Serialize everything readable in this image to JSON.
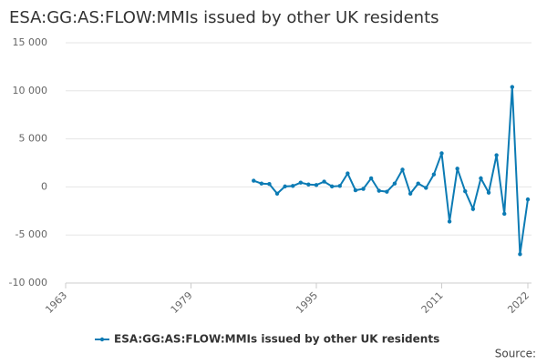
{
  "chart_data": {
    "type": "line",
    "title": "ESA:GG:AS:FLOW:MMIs issued by other UK residents",
    "source": "Source:",
    "x": [
      1987,
      1988,
      1989,
      1990,
      1991,
      1992,
      1993,
      1994,
      1995,
      1996,
      1997,
      1998,
      1999,
      2000,
      2001,
      2002,
      2003,
      2004,
      2005,
      2006,
      2007,
      2008,
      2009,
      2010,
      2011,
      2012,
      2013,
      2014,
      2015,
      2016,
      2017,
      2018,
      2019,
      2020,
      2021,
      2022
    ],
    "series": [
      {
        "name": "ESA:GG:AS:FLOW:MMIs issued by other UK residents",
        "color": "#0c7bb4",
        "values": [
          650,
          350,
          300,
          -700,
          50,
          100,
          450,
          250,
          200,
          550,
          50,
          100,
          1400,
          -350,
          -200,
          900,
          -400,
          -500,
          350,
          1800,
          -700,
          350,
          -100,
          1300,
          3500,
          -3600,
          1900,
          -450,
          -2300,
          900,
          -600,
          3300,
          -2800,
          10400,
          -7000,
          -1300
        ]
      }
    ],
    "xlim": [
      1963,
      2022
    ],
    "xticks": [
      1963,
      1979,
      1995,
      2011,
      2022
    ],
    "ylim": [
      -10000,
      15000
    ],
    "yticks": [
      {
        "value": -10000,
        "label": "-10 000"
      },
      {
        "value": -5000,
        "label": "-5 000"
      },
      0,
      {
        "value": 5000,
        "label": "5 000"
      },
      {
        "value": 10000,
        "label": "10 000"
      },
      {
        "value": 15000,
        "label": "15 000"
      }
    ],
    "grid": true
  }
}
